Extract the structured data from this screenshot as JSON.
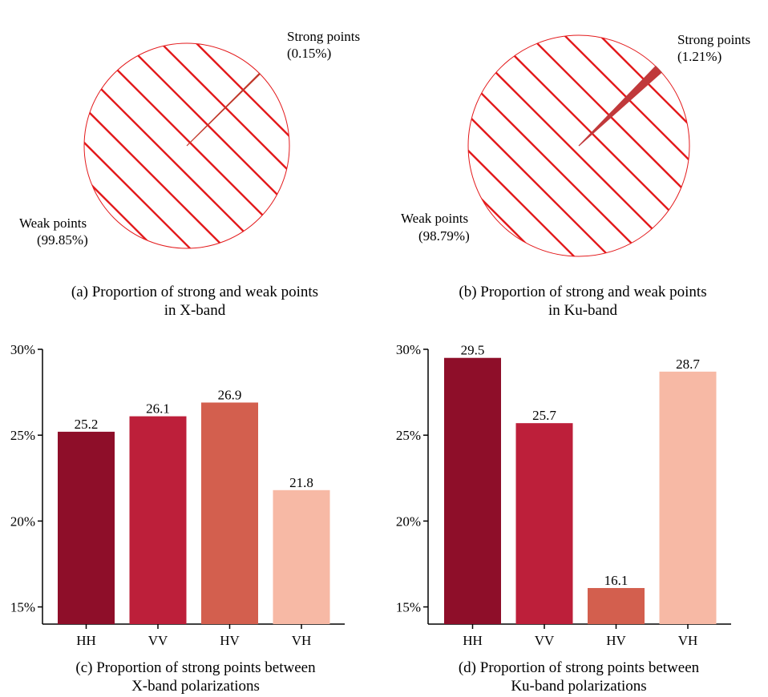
{
  "chart_data": [
    {
      "type": "pie",
      "caption": [
        "(a) Proportion of strong and weak points",
        "in X-band"
      ],
      "slices": [
        {
          "name": "Strong points",
          "pct_label": "(0.15%)",
          "value": 0.15,
          "color": "#c0392b"
        },
        {
          "name": "Weak points",
          "pct_label": "(99.85%)",
          "value": 99.85,
          "color": "#ffffff",
          "hatch_color": "#e31a1c"
        }
      ]
    },
    {
      "type": "pie",
      "caption": [
        "(b) Proportion of strong and weak points",
        "in Ku-band"
      ],
      "slices": [
        {
          "name": "Strong points",
          "pct_label": "(1.21%)",
          "value": 1.21,
          "color": "#c0393b"
        },
        {
          "name": "Weak points",
          "pct_label": "(98.79%)",
          "value": 98.79,
          "color": "#ffffff",
          "hatch_color": "#e31a1c"
        }
      ]
    },
    {
      "type": "bar",
      "caption": [
        "(c) Proportion of strong points between",
        "X-band polarizations"
      ],
      "categories": [
        "HH",
        "VV",
        "HV",
        "VH"
      ],
      "values": [
        25.2,
        26.1,
        26.9,
        21.8
      ],
      "value_labels": [
        "25.2",
        "26.1",
        "26.9",
        "21.8"
      ],
      "colors": [
        "#8e0e29",
        "#bd1f3a",
        "#d35f4e",
        "#f7b9a5"
      ],
      "yticks": [
        15,
        20,
        25,
        30
      ],
      "ytick_labels": [
        "15%",
        "20%",
        "25%",
        "30%"
      ],
      "ylim": [
        14,
        30
      ]
    },
    {
      "type": "bar",
      "caption": [
        "(d) Proportion of strong points between",
        "Ku-band polarizations"
      ],
      "categories": [
        "HH",
        "VV",
        "HV",
        "VH"
      ],
      "values": [
        29.5,
        25.7,
        16.1,
        28.7
      ],
      "value_labels": [
        "29.5",
        "25.7",
        "16.1",
        "28.7"
      ],
      "colors": [
        "#8e0e29",
        "#bd1f3a",
        "#d35f4e",
        "#f7b9a5"
      ],
      "yticks": [
        15,
        20,
        25,
        30
      ],
      "ytick_labels": [
        "15%",
        "20%",
        "25%",
        "30%"
      ],
      "ylim": [
        14,
        30
      ]
    }
  ]
}
